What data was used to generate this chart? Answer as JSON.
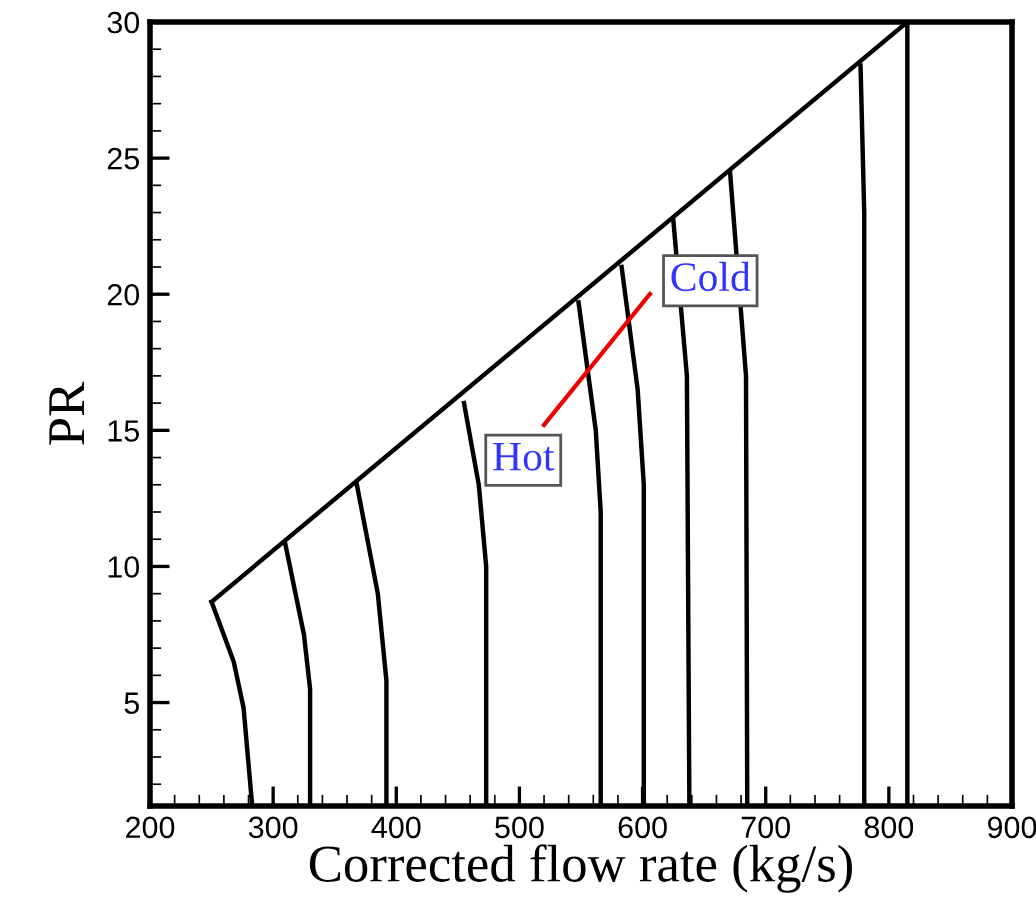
{
  "chart_data": {
    "type": "line",
    "xlabel": "Corrected flow rate (kg/s)",
    "ylabel": "PR",
    "xlim": [
      200,
      900
    ],
    "xticks": [
      200,
      300,
      400,
      500,
      600,
      700,
      800,
      900
    ],
    "ylim": [
      1.2,
      30
    ],
    "yticks": [
      5,
      10,
      15,
      20,
      25,
      30
    ],
    "grid": false,
    "legend": false,
    "marker": "none",
    "line_style": "solid",
    "series": [
      {
        "color": "#000000",
        "x": [
          250,
          815
        ],
        "values": [
          8.7,
          30
        ]
      },
      {
        "color": "#000000",
        "x": [
          250,
          268,
          276,
          283
        ],
        "values": [
          8.7,
          6.5,
          4.8,
          1.2
        ]
      },
      {
        "color": "#000000",
        "x": [
          310,
          325,
          330,
          330
        ],
        "values": [
          10.8,
          7.5,
          5.5,
          1.2
        ]
      },
      {
        "color": "#000000",
        "x": [
          368,
          385,
          392,
          392
        ],
        "values": [
          13,
          9,
          5.8,
          1.2
        ]
      },
      {
        "color": "#000000",
        "x": [
          455,
          467,
          473,
          473
        ],
        "values": [
          16,
          13,
          10,
          1.2
        ]
      },
      {
        "color": "#000000",
        "x": [
          548,
          562,
          566,
          566
        ],
        "values": [
          19.7,
          15,
          12,
          1.2
        ]
      },
      {
        "color": "#000000",
        "x": [
          583,
          596,
          601,
          601
        ],
        "values": [
          21,
          16.5,
          13,
          1.2
        ]
      },
      {
        "color": "#000000",
        "x": [
          625,
          636,
          638
        ],
        "values": [
          22.7,
          17,
          1.2
        ]
      },
      {
        "color": "#000000",
        "x": [
          671,
          684,
          685
        ],
        "values": [
          24.5,
          17,
          1.2
        ]
      },
      {
        "color": "#000000",
        "x": [
          777,
          780,
          780
        ],
        "values": [
          28.4,
          23,
          1.2
        ]
      },
      {
        "color": "#000000",
        "x": [
          815,
          815
        ],
        "values": [
          30,
          1.2
        ]
      }
    ],
    "annotations": [
      "Cold",
      "Hot"
    ]
  }
}
